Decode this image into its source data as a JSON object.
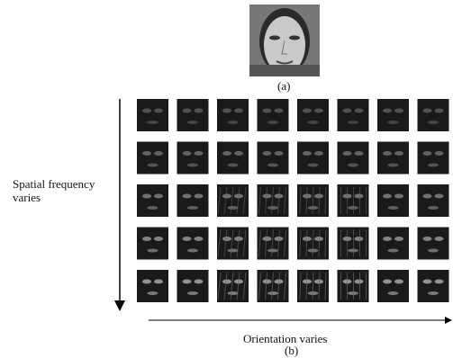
{
  "figure": {
    "label_a": "(a)",
    "y_label": "Spatial frequency varies",
    "x_label": "Orientation varies",
    "label_b": "(b)"
  }
}
